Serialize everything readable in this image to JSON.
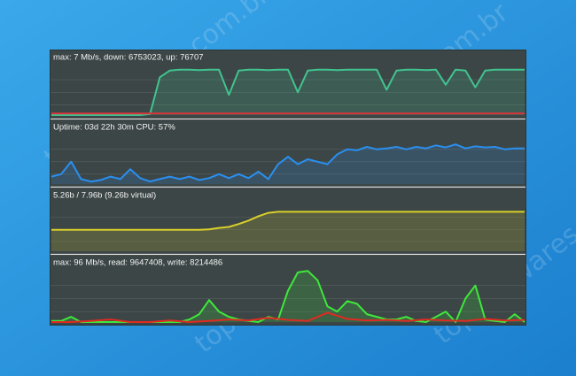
{
  "watermark": "topfreewares.com.br",
  "chart_data": [
    {
      "type": "area",
      "title": "max: 7 Mb/s, down: 6753023, up: 76707",
      "ylim": [
        0,
        100
      ],
      "series": [
        {
          "color": "#41c38f",
          "values": [
            0,
            0,
            0,
            0,
            0,
            0,
            0,
            0,
            0,
            0,
            2,
            75,
            88,
            90,
            90,
            89,
            90,
            90,
            40,
            88,
            90,
            90,
            89,
            90,
            90,
            45,
            88,
            90,
            90,
            89,
            90,
            90,
            90,
            90,
            50,
            88,
            90,
            90,
            89,
            90,
            60,
            90,
            88,
            55,
            88,
            90,
            90,
            90,
            90
          ]
        },
        {
          "color": "#d8343a",
          "values": [
            3,
            3,
            3,
            3,
            3,
            3,
            3,
            3,
            3,
            3,
            3,
            3,
            3
          ]
        }
      ]
    },
    {
      "type": "area",
      "title": "Uptime: 03d 22h 30m   CPU: 57%",
      "ylim": [
        0,
        100
      ],
      "series": [
        {
          "color": "#2a8ff0",
          "values": [
            15,
            20,
            45,
            10,
            5,
            8,
            15,
            10,
            30,
            12,
            5,
            10,
            15,
            10,
            15,
            8,
            12,
            20,
            12,
            20,
            12,
            25,
            10,
            40,
            55,
            40,
            50,
            45,
            40,
            60,
            70,
            68,
            75,
            70,
            72,
            75,
            70,
            75,
            72,
            78,
            74,
            80,
            72,
            76,
            74,
            75,
            70,
            72,
            72
          ]
        }
      ]
    },
    {
      "type": "area",
      "title": "5.26b / 7.96b (9.26b virtual)",
      "ylim": [
        0,
        100
      ],
      "series": [
        {
          "color": "#d9cf2a",
          "values": [
            44,
            44,
            44,
            44,
            44,
            44,
            44,
            44,
            44,
            44,
            44,
            44,
            44,
            44,
            44,
            44,
            45,
            48,
            50,
            56,
            63,
            72,
            79,
            81,
            81,
            81,
            81,
            81,
            81,
            81,
            81,
            81,
            81,
            81,
            81,
            81,
            81,
            81,
            81,
            81,
            81,
            81,
            81,
            81,
            81,
            81,
            81,
            81,
            81
          ]
        }
      ]
    },
    {
      "type": "area",
      "title": "max: 96 Mb/s, read: 9647408, write: 8214486",
      "ylim": [
        0,
        100
      ],
      "series": [
        {
          "color": "#3ee83a",
          "values": [
            2,
            2,
            10,
            0,
            0,
            0,
            0,
            0,
            0,
            0,
            0,
            0,
            0,
            0,
            5,
            15,
            42,
            20,
            10,
            5,
            2,
            0,
            10,
            5,
            60,
            95,
            98,
            80,
            30,
            20,
            40,
            35,
            15,
            10,
            5,
            5,
            10,
            2,
            0,
            10,
            20,
            0,
            45,
            70,
            5,
            2,
            0,
            15,
            0
          ]
        },
        {
          "color": "#e02a22",
          "values": [
            0,
            0,
            2,
            5,
            0,
            0,
            3,
            0,
            2,
            5,
            3,
            8,
            4,
            2,
            18,
            6,
            3,
            4,
            2,
            5,
            3,
            2,
            6,
            3,
            4
          ]
        }
      ]
    }
  ]
}
